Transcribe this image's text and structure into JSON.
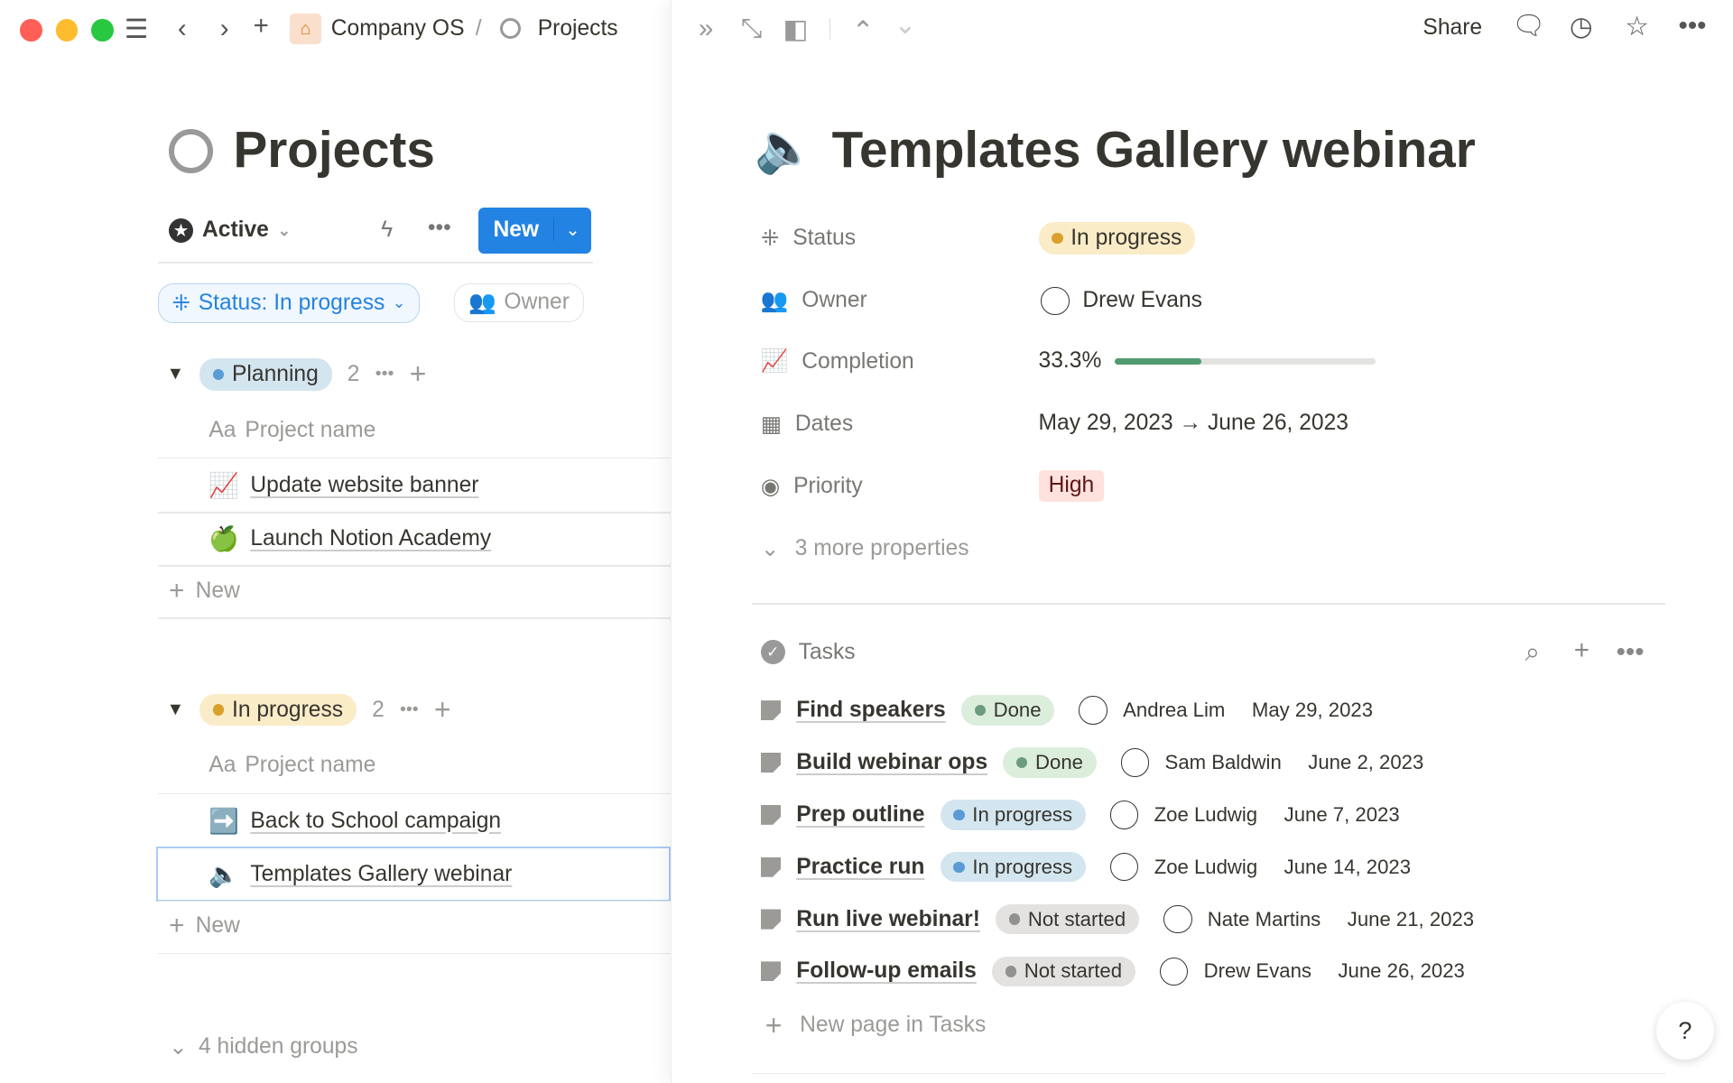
{
  "breadcrumb": {
    "workspace": "Company OS",
    "separator": "/",
    "page": "Projects"
  },
  "left": {
    "title": "Projects",
    "view": "Active",
    "new_label": "New",
    "filter": "Status: In progress",
    "owner_filter": "Owner",
    "groups": [
      {
        "label": "Planning",
        "count": "2",
        "color": "#5a9bd5",
        "bg": "#d3e5ef",
        "column": "Project name",
        "items": [
          {
            "icon": "📈",
            "name": "Update website banner"
          },
          {
            "icon": "🍏",
            "name": "Launch Notion Academy"
          }
        ],
        "new": "New"
      },
      {
        "label": "In progress",
        "count": "2",
        "color": "#d9a02e",
        "bg": "#fbecc8",
        "column": "Project name",
        "items": [
          {
            "icon": "➡️",
            "name": "Back to School campaign"
          },
          {
            "icon": "🔈",
            "name": "Templates Gallery webinar"
          }
        ],
        "new": "New"
      }
    ],
    "column_prefix": "Aa",
    "hidden_groups": "4 hidden groups"
  },
  "right": {
    "share": "Share",
    "title": "Templates Gallery webinar",
    "title_icon": "🔈",
    "props": {
      "status_label": "Status",
      "status": "In progress",
      "owner_label": "Owner",
      "owner": "Drew Evans",
      "completion_label": "Completion",
      "completion": "33.3%",
      "completion_value": 33.3,
      "dates_label": "Dates",
      "dates": "May 29, 2023 → June 26, 2023",
      "priority_label": "Priority",
      "priority": "High",
      "more": "3 more properties"
    },
    "tasks_label": "Tasks",
    "tasks": [
      {
        "name": "Find speakers",
        "status": "Done",
        "owner": "Andrea Lim",
        "date": "May 29, 2023"
      },
      {
        "name": "Build webinar ops",
        "status": "Done",
        "owner": "Sam Baldwin",
        "date": "June 2, 2023"
      },
      {
        "name": "Prep outline",
        "status": "In progress",
        "owner": "Zoe Ludwig",
        "date": "June 7, 2023"
      },
      {
        "name": "Practice run",
        "status": "In progress",
        "owner": "Zoe Ludwig",
        "date": "June 14, 2023"
      },
      {
        "name": "Run live webinar!",
        "status": "Not started",
        "owner": "Nate Martins",
        "date": "June 21, 2023"
      },
      {
        "name": "Follow-up emails",
        "status": "Not started",
        "owner": "Drew Evans",
        "date": "June 26, 2023"
      }
    ],
    "new_task": "New page in Tasks",
    "help": "?"
  },
  "colors": {
    "accent": "#2383e2",
    "done_bg": "#dbeddb",
    "done_dot": "#6c9b7d",
    "progress_bg": "#d3e5ef",
    "progress_dot": "#5a9bd5",
    "notstarted_bg": "#e3e2e0",
    "notstarted_dot": "#91918e",
    "high_bg": "#ffe2dd",
    "high_fg": "#5d1715"
  }
}
